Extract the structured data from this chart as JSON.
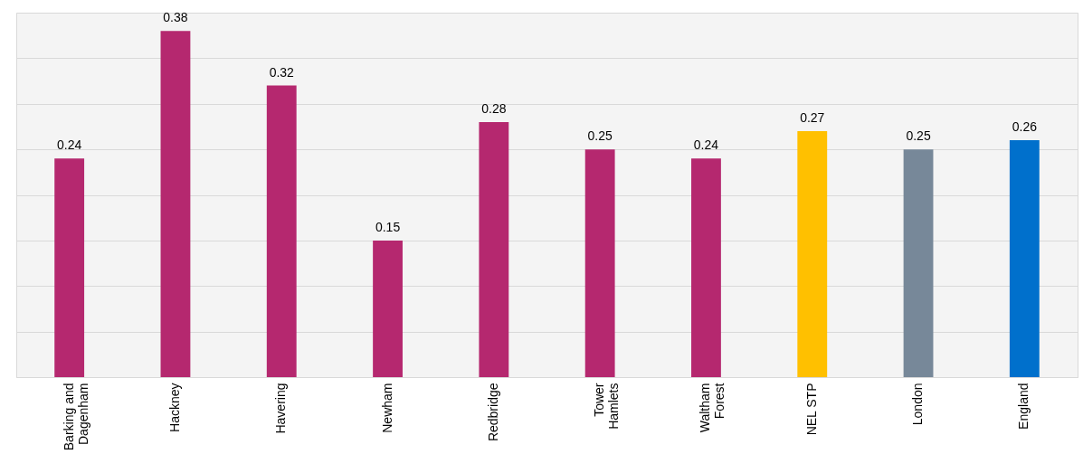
{
  "chart_data": {
    "type": "bar",
    "categories": [
      "Barking and Dagenham",
      "Hackney",
      "Havering",
      "Newham",
      "Redbridge",
      "Tower Hamlets",
      "Waltham Forest",
      "NEL STP",
      "London",
      "England"
    ],
    "values": [
      0.24,
      0.38,
      0.32,
      0.15,
      0.28,
      0.25,
      0.24,
      0.27,
      0.25,
      0.26
    ],
    "colors": [
      "#b5286f",
      "#b5286f",
      "#b5286f",
      "#b5286f",
      "#b5286f",
      "#b5286f",
      "#b5286f",
      "#ffc000",
      "#778899",
      "#0070cc"
    ],
    "ylim": [
      0,
      0.4
    ],
    "yticks": [
      {
        "value": 0,
        "label": null
      },
      {
        "value": 0.05,
        "label": null
      },
      {
        "value": 0.1,
        "label": null
      },
      {
        "value": 0.15,
        "label": null
      },
      {
        "value": 0.2,
        "label": null
      },
      {
        "value": 0.25,
        "label": null
      },
      {
        "value": 0.3,
        "label": null
      },
      {
        "value": 0.35,
        "label": null
      },
      {
        "value": 0.4,
        "label": null
      }
    ],
    "grid": "y",
    "tick_labels": "x",
    "data_labels": true
  }
}
